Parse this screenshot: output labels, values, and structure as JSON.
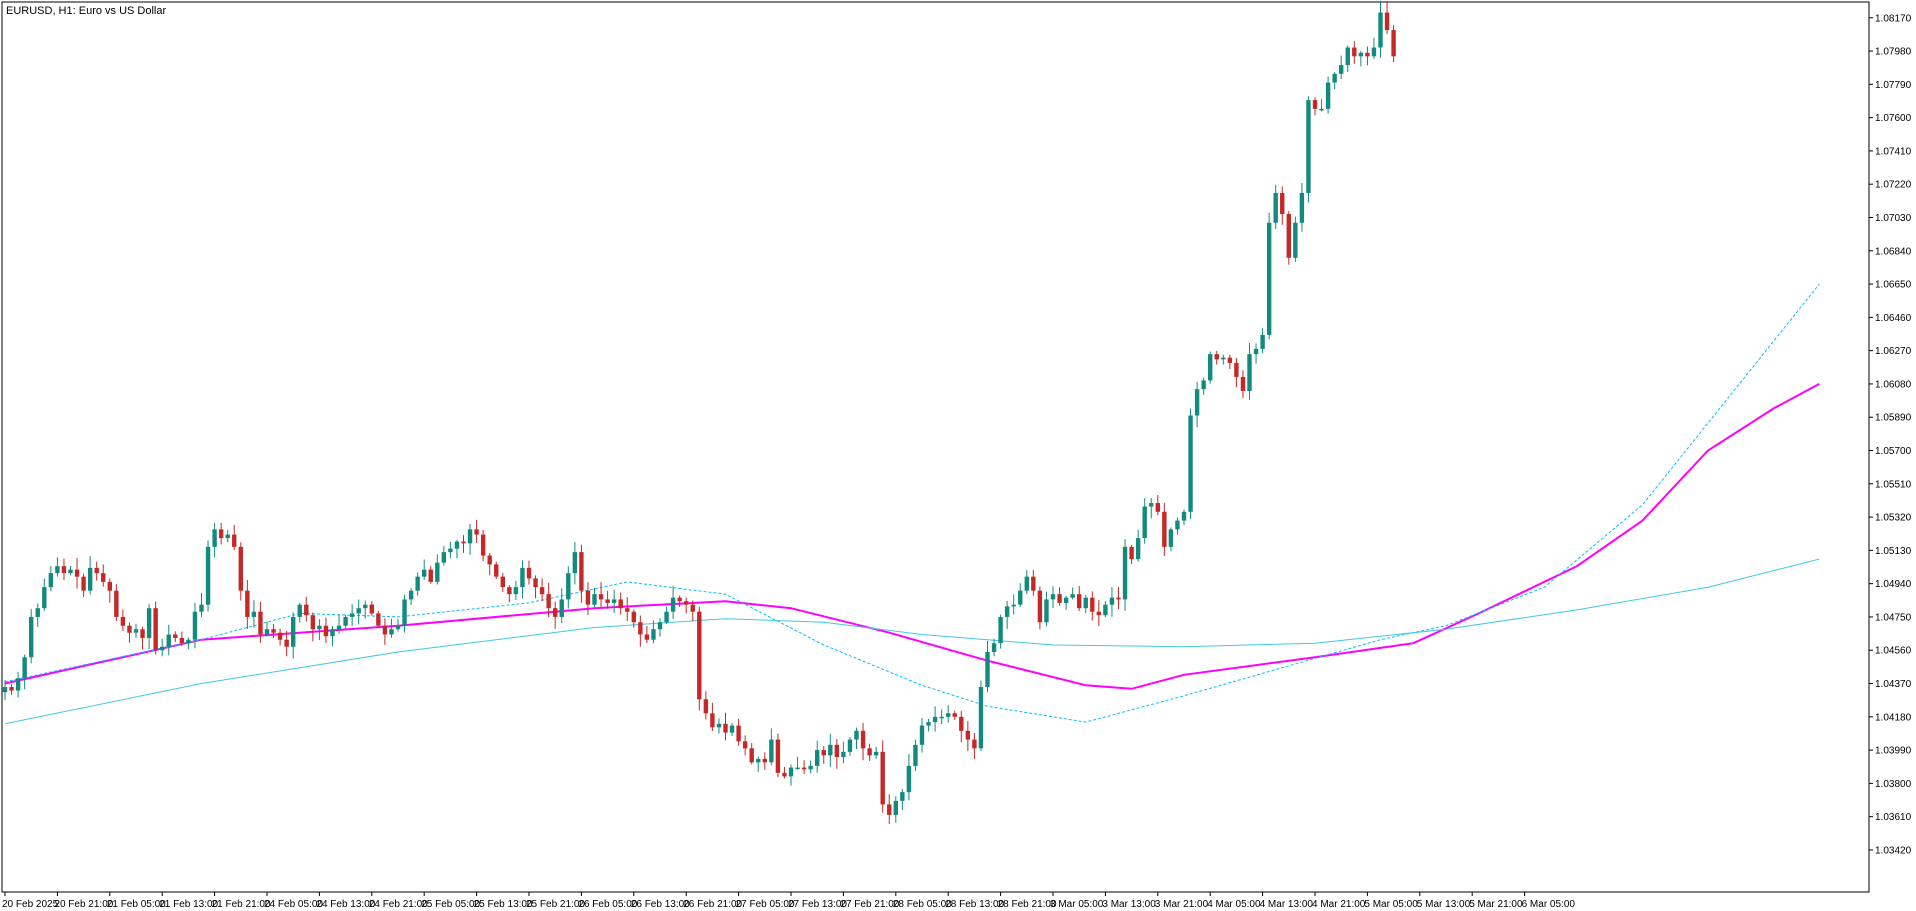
{
  "colors": {
    "bull": "#26a69a",
    "bull_body": "#138a80",
    "bear": "#c62828",
    "frame": "#000000",
    "ma_fast": "#ff00ff",
    "ma_dotted": "#00bfff",
    "ma_slow": "#40c8e8",
    "background": "#ffffff"
  },
  "chart_data": {
    "type": "candlestick",
    "title": "EURUSD, H1:  Euro vs US Dollar",
    "y_range": [
      1.0318,
      1.0826
    ],
    "y_ticks": [
      "1.08170",
      "1.07980",
      "1.07790",
      "1.07600",
      "1.07410",
      "1.07220",
      "1.07030",
      "1.06840",
      "1.06650",
      "1.06460",
      "1.06270",
      "1.06080",
      "1.05890",
      "1.05700",
      "1.05510",
      "1.05320",
      "1.05130",
      "1.04940",
      "1.04750",
      "1.04560",
      "1.04370",
      "1.04180",
      "1.03990",
      "1.03800",
      "1.03610",
      "1.03420"
    ],
    "x_ticks": [
      "20 Feb 2025",
      "20 Feb 21:00",
      "21 Feb 05:00",
      "21 Feb 13:00",
      "21 Feb 21:00",
      "24 Feb 05:00",
      "24 Feb 13:00",
      "24 Feb 21:00",
      "25 Feb 05:00",
      "25 Feb 13:00",
      "25 Feb 21:00",
      "26 Feb 05:00",
      "26 Feb 13:00",
      "26 Feb 21:00",
      "27 Feb 05:00",
      "27 Feb 13:00",
      "27 Feb 21:00",
      "28 Feb 05:00",
      "28 Feb 13:00",
      "28 Feb 21:00",
      "3 Mar 05:00",
      "3 Mar 13:00",
      "3 Mar 21:00",
      "4 Mar 05:00",
      "4 Mar 13:00",
      "4 Mar 21:00",
      "5 Mar 05:00",
      "5 Mar 13:00",
      "5 Mar 21:00",
      "6 Mar 05:00"
    ],
    "bars_per_tick": 8,
    "closes": [
      1.0435,
      1.0433,
      1.044,
      1.0452,
      1.0475,
      1.048,
      1.0492,
      1.05,
      1.0504,
      1.05,
      1.0502,
      1.0498,
      1.049,
      1.0503,
      1.05,
      1.0495,
      1.049,
      1.0475,
      1.047,
      1.0466,
      1.0468,
      1.0463,
      1.048,
      1.0456,
      1.0458,
      1.0465,
      1.0463,
      1.046,
      1.0462,
      1.0478,
      1.0482,
      1.0515,
      1.0525,
      1.052,
      1.0522,
      1.0515,
      1.049,
      1.0475,
      1.0478,
      1.0465,
      1.0468,
      1.0466,
      1.0462,
      1.0458,
      1.0475,
      1.0482,
      1.0476,
      1.0468,
      1.047,
      1.0464,
      1.0468,
      1.047,
      1.0475,
      1.0477,
      1.048,
      1.0482,
      1.0477,
      1.047,
      1.0465,
      1.0468,
      1.047,
      1.0485,
      1.049,
      1.0498,
      1.0502,
      1.0495,
      1.0506,
      1.0512,
      1.0514,
      1.0518,
      1.0517,
      1.0525,
      1.0522,
      1.051,
      1.0505,
      1.0498,
      1.0492,
      1.0488,
      1.0492,
      1.0503,
      1.0497,
      1.0492,
      1.0488,
      1.048,
      1.0475,
      1.0485,
      1.05,
      1.0512,
      1.049,
      1.0482,
      1.0488,
      1.0485,
      1.0483,
      1.0485,
      1.048,
      1.0478,
      1.0472,
      1.0465,
      1.0462,
      1.0468,
      1.0472,
      1.0478,
      1.0486,
      1.0484,
      1.0482,
      1.0478,
      1.0428,
      1.042,
      1.0412,
      1.0414,
      1.0409,
      1.0413,
      1.0404,
      1.04,
      1.0392,
      1.0394,
      1.0392,
      1.0405,
      1.0386,
      1.0384,
      1.0389,
      1.0389,
      1.0388,
      1.039,
      1.0399,
      1.0396,
      1.0402,
      1.0395,
      1.0398,
      1.0405,
      1.041,
      1.04,
      1.0396,
      1.0398,
      1.0368,
      1.0362,
      1.037,
      1.0375,
      1.039,
      1.0402,
      1.0413,
      1.0415,
      1.0418,
      1.0418,
      1.042,
      1.0418,
      1.041,
      1.0405,
      1.04,
      1.0435,
      1.0455,
      1.046,
      1.0475,
      1.0481,
      1.0482,
      1.049,
      1.0498,
      1.049,
      1.0472,
      1.0485,
      1.0488,
      1.0483,
      1.0486,
      1.0488,
      1.048,
      1.0486,
      1.0478,
      1.0476,
      1.0482,
      1.0486,
      1.0485,
      1.0515,
      1.0508,
      1.052,
      1.0538,
      1.054,
      1.0535,
      1.0515,
      1.0525,
      1.053,
      1.0535,
      1.059,
      1.0605,
      1.061,
      1.0625,
      1.0622,
      1.0623,
      1.062,
      1.0612,
      1.0604,
      1.0625,
      1.0628,
      1.0636,
      1.07,
      1.0717,
      1.0705,
      1.068,
      1.07,
      1.0717,
      1.077,
      1.0765,
      1.0765,
      1.078,
      1.0785,
      1.079,
      1.08,
      1.0795,
      1.0797,
      1.0795,
      1.08,
      1.082,
      1.081,
      1.0795
    ],
    "series": [
      {
        "type": "ma_fast",
        "color": "#ff00ff",
        "style": "solid",
        "points": [
          [
            0,
            1.0437
          ],
          [
            30,
            1.0462
          ],
          [
            60,
            1.047
          ],
          [
            90,
            1.048
          ],
          [
            110,
            1.0484
          ],
          [
            120,
            1.048
          ],
          [
            135,
            1.0466
          ],
          [
            150,
            1.045
          ],
          [
            165,
            1.0436
          ],
          [
            172,
            1.0434
          ],
          [
            180,
            1.0442
          ],
          [
            200,
            1.0452
          ],
          [
            215,
            1.046
          ],
          [
            225,
            1.0477
          ],
          [
            240,
            1.0504
          ],
          [
            250,
            1.053
          ],
          [
            260,
            1.057
          ],
          [
            270,
            1.0594
          ],
          [
            277,
            1.0608
          ]
        ]
      },
      {
        "type": "ma_dotted",
        "color": "#00bfff",
        "style": "dashed",
        "points": [
          [
            0,
            1.0438
          ],
          [
            30,
            1.0462
          ],
          [
            45,
            1.0477
          ],
          [
            60,
            1.0475
          ],
          [
            80,
            1.0483
          ],
          [
            95,
            1.0495
          ],
          [
            110,
            1.0488
          ],
          [
            125,
            1.0459
          ],
          [
            140,
            1.0436
          ],
          [
            150,
            1.0424
          ],
          [
            165,
            1.0415
          ],
          [
            180,
            1.043
          ],
          [
            195,
            1.0446
          ],
          [
            210,
            1.0462
          ],
          [
            220,
            1.047
          ],
          [
            235,
            1.0492
          ],
          [
            250,
            1.0539
          ],
          [
            262,
            1.0595
          ],
          [
            277,
            1.0665
          ]
        ]
      },
      {
        "type": "ma_slow",
        "color": "#40c8e8",
        "style": "solid",
        "points": [
          [
            0,
            1.0414
          ],
          [
            30,
            1.0437
          ],
          [
            60,
            1.0455
          ],
          [
            90,
            1.0469
          ],
          [
            110,
            1.0474
          ],
          [
            125,
            1.0472
          ],
          [
            140,
            1.0465
          ],
          [
            160,
            1.0459
          ],
          [
            180,
            1.0458
          ],
          [
            200,
            1.046
          ],
          [
            220,
            1.0468
          ],
          [
            240,
            1.0479
          ],
          [
            260,
            1.0492
          ],
          [
            277,
            1.0508
          ]
        ]
      }
    ],
    "xlabel": "",
    "ylabel": "",
    "grid": false
  }
}
